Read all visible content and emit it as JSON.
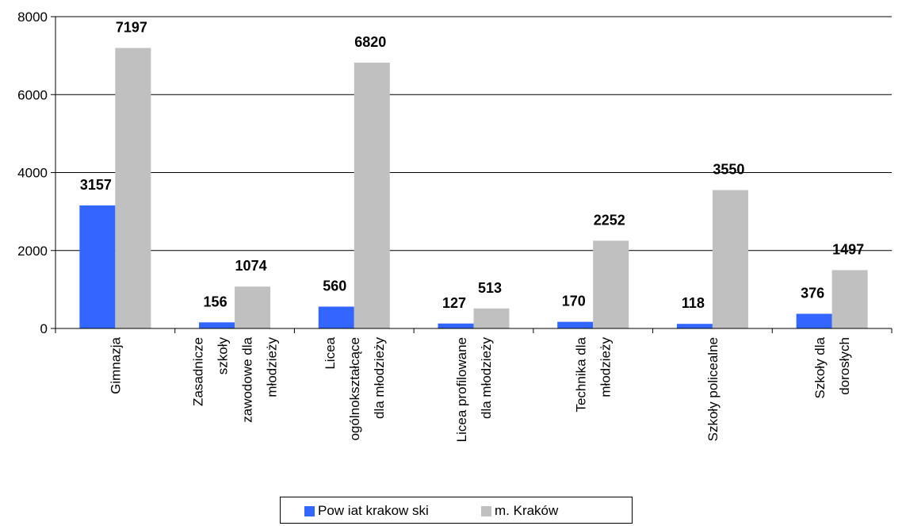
{
  "chart_data": {
    "type": "bar",
    "categories": [
      [
        "Gimnazja"
      ],
      [
        "Zasadnicze",
        "szkoły",
        "zawodowe dla",
        "młodzieży"
      ],
      [
        "Licea",
        "ogólnokształcące",
        "dla młodzieży"
      ],
      [
        "Licea profilowane",
        "dla młodzieży"
      ],
      [
        "Technika dla",
        "młodzieży"
      ],
      [
        "Szkoły policealne"
      ],
      [
        "Szkoły dla",
        "dorosłych"
      ]
    ],
    "series": [
      {
        "name": "Pow iat krakow ski",
        "color": "#3366ff",
        "values": [
          3157,
          156,
          560,
          127,
          170,
          118,
          376
        ]
      },
      {
        "name": "m. Kraków",
        "color": "#c0c0c0",
        "values": [
          7197,
          1074,
          6820,
          513,
          2252,
          3550,
          1497
        ]
      }
    ],
    "yticks": [
      "0",
      "2000",
      "4000",
      "6000",
      "8000"
    ],
    "ylim": [
      0,
      8000
    ],
    "grid": true,
    "legend_position": "bottom",
    "title": "",
    "xlabel": "",
    "ylabel": ""
  }
}
